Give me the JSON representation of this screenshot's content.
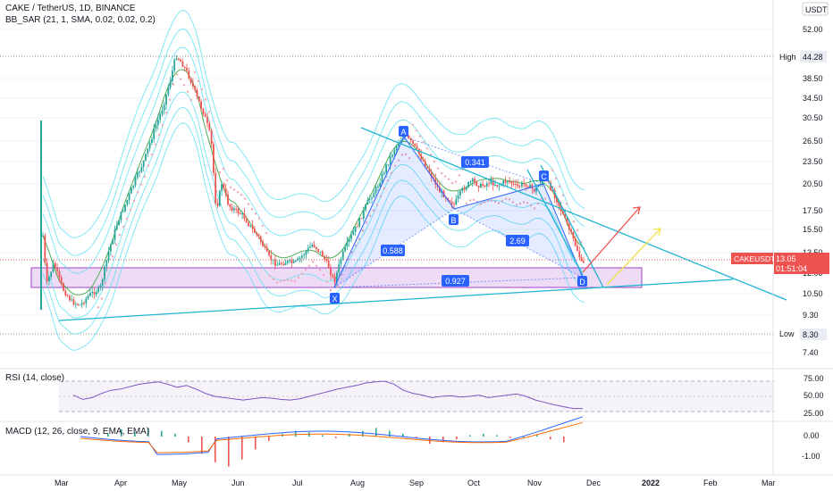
{
  "header": {
    "symbol": "CAKE / TetherUS, 1D, BINANCE",
    "indicator": "BB_SAR (21, 1, SMA, 0.02, 0.02, 0.2)",
    "currency": "USDT"
  },
  "rsi_panel": {
    "label": "RSI (14, close)",
    "ticks": [
      "75.00",
      "50.00",
      "25.00"
    ]
  },
  "macd_panel": {
    "label": "MACD (12, 26, close, 9, EMA, EMA)",
    "ticks": [
      "0.00",
      "-1.00"
    ]
  },
  "price_axis": {
    "ticks": [
      "52.00",
      "44.28",
      "38.50",
      "34.50",
      "30.50",
      "26.50",
      "23.50",
      "20.50",
      "17.50",
      "15.50",
      "13.50",
      "12.00",
      "10.50",
      "9.30",
      "8.30",
      "7.40"
    ],
    "high_label": "High",
    "high_value": "44.28",
    "low_label": "Low",
    "low_value": "8.30",
    "last_symbol": "CAKEUSDT",
    "last_price": "13.05",
    "countdown": "01:51:04"
  },
  "time_axis": [
    "Mar",
    "Apr",
    "May",
    "Jun",
    "Jul",
    "Aug",
    "Sep",
    "Oct",
    "Nov",
    "Dec",
    "2022",
    "Feb",
    "Mar"
  ],
  "pattern": {
    "points": [
      "X",
      "A",
      "B",
      "C",
      "D"
    ],
    "ratios": {
      "xb": "0.588",
      "ac": "0.341",
      "bd": "2.69",
      "xd": "0.927"
    }
  },
  "colors": {
    "up": "#26a69a",
    "down": "#ef5350",
    "bands": "#5ce1f2",
    "mid": "#4caf50",
    "sar": "#f8a5b5",
    "trendline": "#1fb4d1",
    "pattern": "#2962ff",
    "zone": "#b15bd6",
    "rsi": "#7e57c2",
    "macd": "#2962ff",
    "signal": "#ff6d00"
  },
  "chart_data": {
    "type": "line",
    "title": "CAKE / TetherUS, 1D, BINANCE",
    "x": [
      "Mar",
      "Apr",
      "May",
      "Jun",
      "Jul",
      "Aug",
      "Sep",
      "Oct",
      "Nov",
      "Dec"
    ],
    "series": [
      {
        "name": "CAKE / TetherUS",
        "values": [
          12.0,
          18.0,
          40.0,
          16.5,
          12.5,
          19.0,
          25.5,
          19.5,
          20.0,
          13.05
        ]
      }
    ],
    "pattern_points": {
      "X": 11.1,
      "A": 27.0,
      "B": 17.4,
      "C": 22.5,
      "D": 11.5
    },
    "ylim": [
      6.8,
      58.0
    ],
    "y_scale": "log",
    "high": 44.28,
    "low": 8.3,
    "last": 13.05
  }
}
